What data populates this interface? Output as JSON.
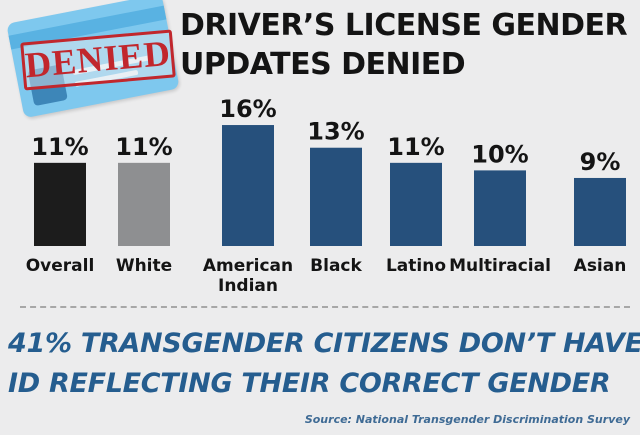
{
  "title": {
    "line1": "DRIVER’S LICENSE GENDER",
    "line2": "UPDATES DENIED"
  },
  "stamp": {
    "text": "DENIED"
  },
  "headline": {
    "line1": "41% TRANSGENDER CITIZENS DON’T HAVE",
    "line2": "ID REFLECTING THEIR CORRECT GENDER"
  },
  "source": "Source: National Transgender Discrimination Survey",
  "colors": {
    "overall": "#1c1c1c",
    "white": "#8e8f91",
    "group": "#26507c",
    "headline": "#255d8f",
    "stamp": "#c1272d",
    "card": "#7ec8ee"
  },
  "chart_data": {
    "type": "bar",
    "title": "DRIVER’S LICENSE GENDER UPDATES DENIED",
    "categories": [
      "Overall",
      "White",
      "American Indian",
      "Black",
      "Latino",
      "Multiracial",
      "Asian"
    ],
    "category_lines": [
      [
        "Overall"
      ],
      [
        "White"
      ],
      [
        "American",
        "Indian"
      ],
      [
        "Black"
      ],
      [
        "Latino"
      ],
      [
        "Multiracial"
      ],
      [
        "Asian"
      ]
    ],
    "values": [
      11,
      11,
      16,
      13,
      11,
      10,
      9
    ],
    "labels": [
      "11%",
      "11%",
      "16%",
      "13%",
      "11%",
      "10%",
      "9%"
    ],
    "unit": "%",
    "ylim": [
      0,
      16
    ],
    "grid": false,
    "legend": "none",
    "bar_colors": [
      "#1c1c1c",
      "#8e8f91",
      "#26507c",
      "#26507c",
      "#26507c",
      "#26507c",
      "#26507c"
    ]
  }
}
